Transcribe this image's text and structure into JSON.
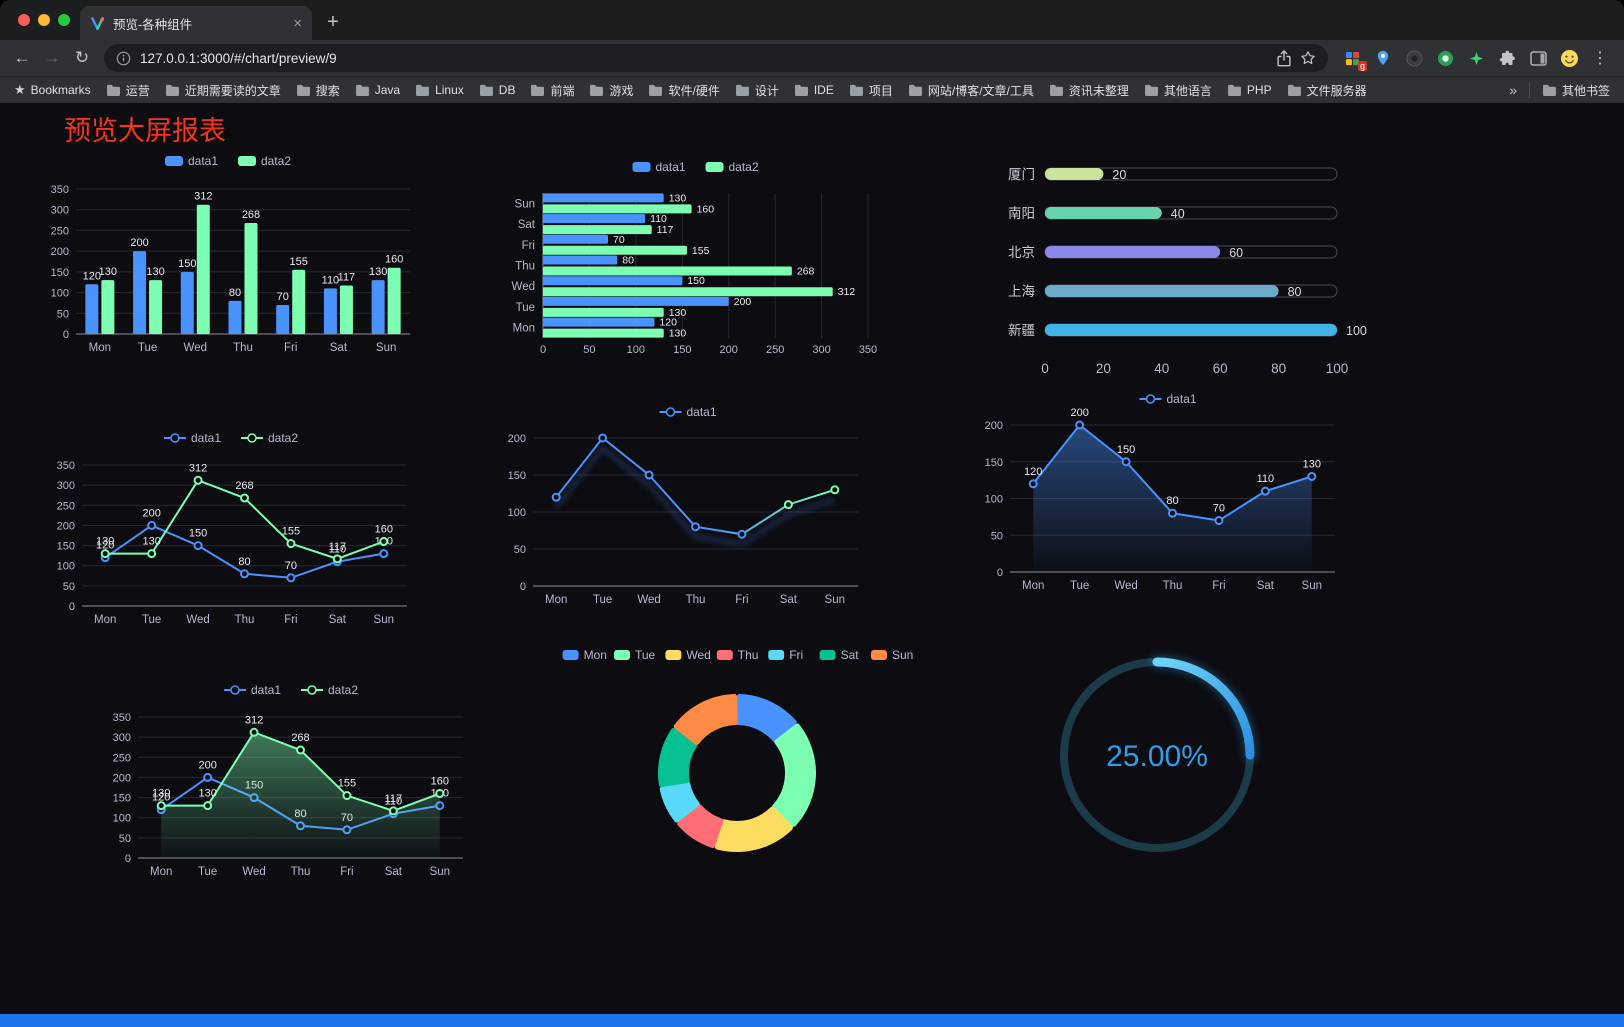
{
  "browser": {
    "tab": {
      "title": "预览-各种组件"
    },
    "url": "127.0.0.1:3000/#/chart/preview/9",
    "glyphs": {
      "close": "×",
      "new_tab": "+",
      "back": "←",
      "forward": "→",
      "reload": "↻",
      "kebab": "⋮",
      "overflow": "»"
    },
    "ext_badge": "g",
    "bookmarks": {
      "label": "Bookmarks",
      "folders": [
        "运营",
        "近期需要读的文章",
        "搜索",
        "Java",
        "Linux",
        "DB",
        "前端",
        "游戏",
        "软件/硬件",
        "设计",
        "IDE",
        "项目",
        "网站/博客/文章/工具",
        "资讯未整理",
        "其他语言",
        "PHP",
        "文件服务器"
      ],
      "other": "其他书签"
    }
  },
  "page": {
    "title": "预览大屏报表",
    "title_color": "#f5351b",
    "background": "#0c0c11",
    "accent_blue": "#4992ff",
    "accent_green": "#7cffb2"
  },
  "chart_data": [
    {
      "id": "grouped-bar",
      "type": "bar",
      "legend_position": "top",
      "categories": [
        "Mon",
        "Tue",
        "Wed",
        "Thu",
        "Fri",
        "Sat",
        "Sun"
      ],
      "series": [
        {
          "name": "data1",
          "color": "#4992ff",
          "values": [
            120,
            200,
            150,
            80,
            70,
            110,
            130
          ]
        },
        {
          "name": "data2",
          "color": "#7cffb2",
          "values": [
            130,
            130,
            312,
            268,
            155,
            117,
            160
          ]
        }
      ],
      "ylim": [
        0,
        350
      ],
      "ytick_step": 50,
      "labels": true
    },
    {
      "id": "grouped-horizontal-bar",
      "type": "hbar",
      "legend_position": "top",
      "categories": [
        "Mon",
        "Tue",
        "Wed",
        "Thu",
        "Fri",
        "Sat",
        "Sun"
      ],
      "series": [
        {
          "name": "data1",
          "color": "#4992ff",
          "values": [
            120,
            200,
            150,
            80,
            70,
            110,
            130
          ]
        },
        {
          "name": "data2",
          "color": "#7cffb2",
          "values": [
            130,
            130,
            312,
            268,
            155,
            117,
            160
          ]
        }
      ],
      "xlim": [
        0,
        350
      ],
      "xtick_step": 50,
      "labels": true
    },
    {
      "id": "city-progress-bars",
      "type": "progress",
      "max": 100,
      "xticks": [
        0,
        20,
        40,
        60,
        80,
        100
      ],
      "rows": [
        {
          "label": "厦门",
          "value": 20,
          "color": "#c9e59b"
        },
        {
          "label": "南阳",
          "value": 40,
          "color": "#66d3ae"
        },
        {
          "label": "北京",
          "value": 60,
          "color": "#8b87e8"
        },
        {
          "label": "上海",
          "value": 80,
          "color": "#6cabc7"
        },
        {
          "label": "新疆",
          "value": 100,
          "color": "#40b3e6"
        }
      ]
    },
    {
      "id": "two-series-line",
      "type": "line",
      "legend_position": "top",
      "categories": [
        "Mon",
        "Tue",
        "Wed",
        "Thu",
        "Fri",
        "Sat",
        "Sun"
      ],
      "series": [
        {
          "name": "data1",
          "color": "#4992ff",
          "values": [
            120,
            200,
            150,
            80,
            70,
            110,
            130
          ]
        },
        {
          "name": "data2",
          "color": "#7cffb2",
          "values": [
            130,
            130,
            312,
            268,
            155,
            117,
            160
          ]
        }
      ],
      "ylim": [
        0,
        350
      ],
      "ytick_step": 50,
      "labels": true,
      "markers": true
    },
    {
      "id": "gradient-line",
      "type": "line",
      "legend_position": "top",
      "categories": [
        "Mon",
        "Tue",
        "Wed",
        "Thu",
        "Fri",
        "Sat",
        "Sun"
      ],
      "series": [
        {
          "name": "data1",
          "color": "#4992ff",
          "gradient_to": "#7cffb2",
          "values": [
            120,
            200,
            150,
            80,
            70,
            110,
            130
          ]
        }
      ],
      "ylim": [
        0,
        200
      ],
      "ytick_step": 50,
      "labels": false,
      "markers": true,
      "shadow": true
    },
    {
      "id": "area-line",
      "type": "line",
      "legend_position": "top",
      "categories": [
        "Mon",
        "Tue",
        "Wed",
        "Thu",
        "Fri",
        "Sat",
        "Sun"
      ],
      "series": [
        {
          "name": "data1",
          "color": "#4992ff",
          "area": true,
          "values": [
            120,
            200,
            150,
            80,
            70,
            110,
            130
          ]
        }
      ],
      "ylim": [
        0,
        200
      ],
      "ytick_step": 50,
      "labels": true,
      "markers": true
    },
    {
      "id": "line-with-green-area",
      "type": "line",
      "legend_position": "top",
      "categories": [
        "Mon",
        "Tue",
        "Wed",
        "Thu",
        "Fri",
        "Sat",
        "Sun"
      ],
      "series": [
        {
          "name": "data1",
          "color": "#4992ff",
          "values": [
            120,
            200,
            150,
            80,
            70,
            110,
            130
          ]
        },
        {
          "name": "data2",
          "color": "#7cffb2",
          "area": true,
          "values": [
            130,
            130,
            312,
            268,
            155,
            117,
            160
          ]
        }
      ],
      "ylim": [
        0,
        350
      ],
      "ytick_step": 50,
      "labels": true,
      "markers": true
    },
    {
      "id": "weekday-donut",
      "type": "donut",
      "legend_position": "top",
      "items": [
        {
          "label": "Mon",
          "value": 120,
          "color": "#4992ff"
        },
        {
          "label": "Tue",
          "value": 200,
          "color": "#7cffb2"
        },
        {
          "label": "Wed",
          "value": 150,
          "color": "#fddd60"
        },
        {
          "label": "Thu",
          "value": 80,
          "color": "#ff6e76"
        },
        {
          "label": "Fri",
          "value": 70,
          "color": "#58d9f9"
        },
        {
          "label": "Sat",
          "value": 110,
          "color": "#05c091"
        },
        {
          "label": "Sun",
          "value": 130,
          "color": "#ff8a45"
        }
      ]
    },
    {
      "id": "percentage-gauge",
      "type": "gauge",
      "value": 25,
      "max": 100,
      "label": "25.00%",
      "color": "#2f9fea"
    }
  ]
}
